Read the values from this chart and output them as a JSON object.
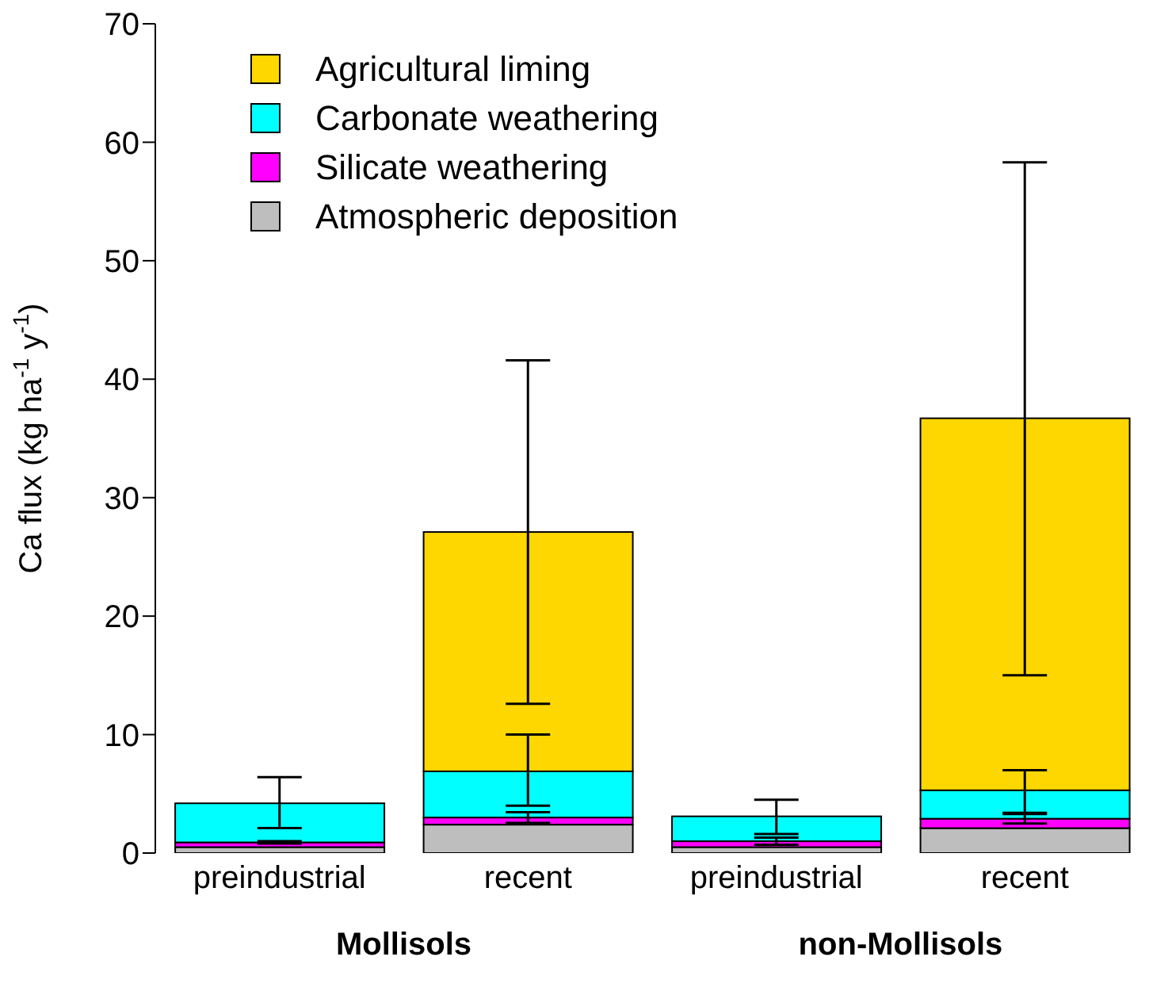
{
  "chart_data": {
    "type": "bar",
    "stacked": true,
    "categories": [
      "preindustrial",
      "recent",
      "preindustrial",
      "recent"
    ],
    "ylabel": "Ca flux (kg ha$^{-1}$ y$^{-1}$)",
    "ylim": [
      0,
      70
    ],
    "yticks": [
      0,
      10,
      20,
      30,
      40,
      50,
      60,
      70
    ],
    "legend": "top left",
    "annotations": [
      "Mollisols",
      "non-Mollisols"
    ],
    "series": [
      {
        "name": "Atmospheric deposition",
        "color": "#bebebe",
        "values": [
          0.5,
          2.4,
          0.5,
          2.1
        ]
      },
      {
        "name": "Silicate weathering",
        "color": "#ff00ff",
        "values": [
          0.4,
          0.6,
          0.5,
          0.8
        ],
        "errors": [
          [
            0.8,
            1.0
          ],
          [
            2.55,
            3.45
          ],
          [
            0.7,
            1.3
          ],
          [
            2.5,
            3.3
          ]
        ]
      },
      {
        "name": "Carbonate weathering",
        "color": "#00ffff",
        "values": [
          3.3,
          3.9,
          2.1,
          2.4
        ],
        "errors": [
          [
            2.1,
            6.4
          ],
          [
            4.0,
            10.0
          ],
          [
            1.6,
            4.5
          ],
          [
            3.4,
            7.0
          ]
        ]
      },
      {
        "name": "Agricultural liming",
        "color": "#ffd700",
        "values": [
          null,
          20.2,
          null,
          31.4
        ],
        "errors": [
          null,
          [
            12.6,
            41.6
          ],
          null,
          [
            15.0,
            58.3
          ]
        ]
      }
    ]
  }
}
